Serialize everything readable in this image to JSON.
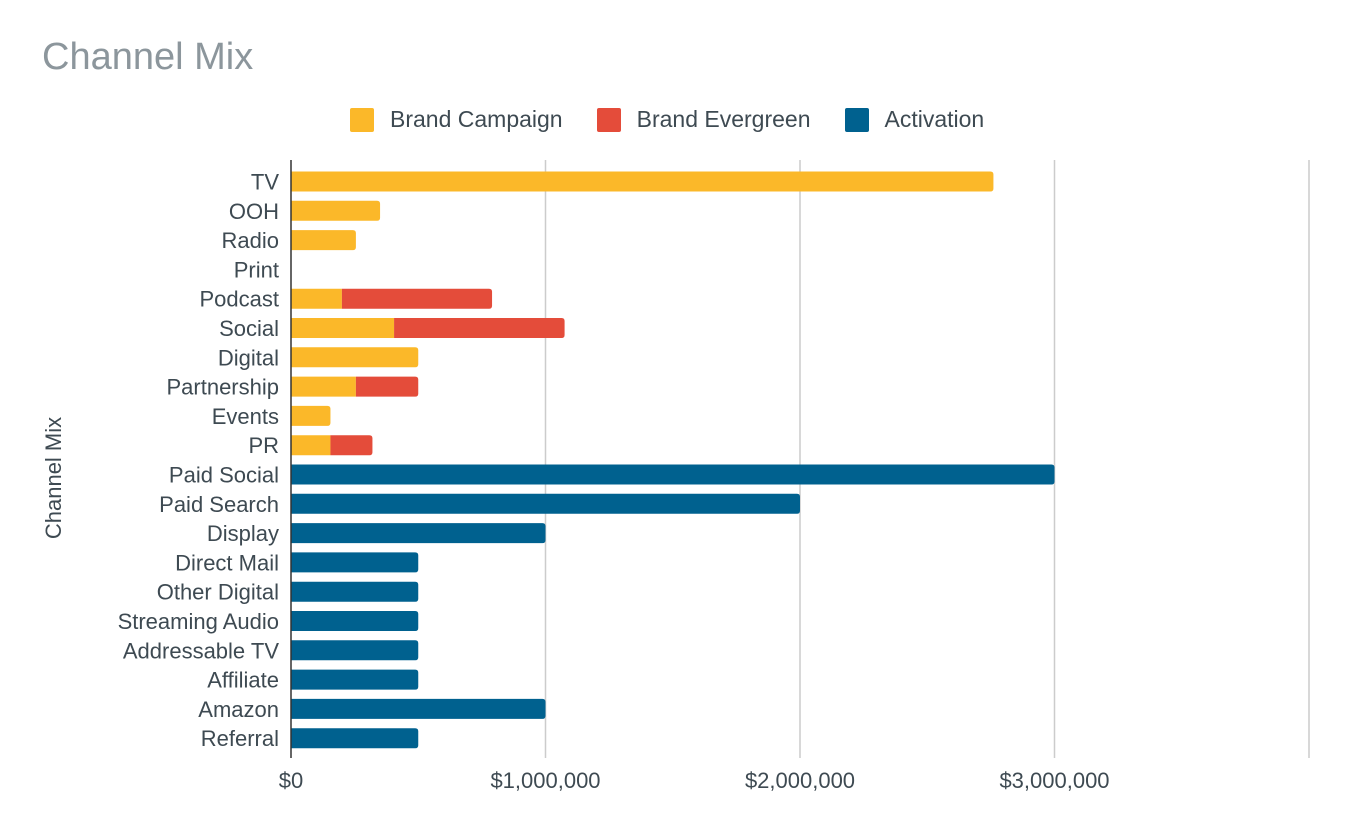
{
  "chart_data": {
    "type": "bar",
    "orientation": "horizontal",
    "stacked": true,
    "title": "Channel Mix",
    "xlabel": "",
    "ylabel": "Channel Mix",
    "xlim": [
      0,
      4000000
    ],
    "x_ticks": [
      0,
      1000000,
      2000000,
      3000000,
      4000000
    ],
    "x_tick_labels": [
      "$0",
      "$1,000,000",
      "$2,000,000",
      "$3,000,000",
      ""
    ],
    "grid": true,
    "legend_position": "top",
    "categories": [
      "TV",
      "OOH",
      "Radio",
      "Print",
      "Podcast",
      "Social",
      "Digital",
      "Partnership",
      "Events",
      "PR",
      "Paid Social",
      "Paid Search",
      "Display",
      "Direct Mail",
      "Other Digital",
      "Streaming Audio",
      "Addressable TV",
      "Affiliate",
      "Amazon",
      "Referral"
    ],
    "series": [
      {
        "name": "Brand Campaign",
        "color": "#fbb829",
        "values": [
          2760000,
          350000,
          255000,
          0,
          200000,
          405000,
          500000,
          255000,
          155000,
          155000,
          0,
          0,
          0,
          0,
          0,
          0,
          0,
          0,
          0,
          0
        ]
      },
      {
        "name": "Brand Evergreen",
        "color": "#e44c3a",
        "values": [
          0,
          0,
          0,
          0,
          590000,
          670000,
          0,
          245000,
          0,
          165000,
          0,
          0,
          0,
          0,
          0,
          0,
          0,
          0,
          0,
          0
        ]
      },
      {
        "name": "Activation",
        "color": "#00618f",
        "values": [
          0,
          0,
          0,
          0,
          0,
          0,
          0,
          0,
          0,
          0,
          3000000,
          2000000,
          1000000,
          500000,
          500000,
          500000,
          500000,
          500000,
          1000000,
          500000
        ]
      }
    ]
  }
}
